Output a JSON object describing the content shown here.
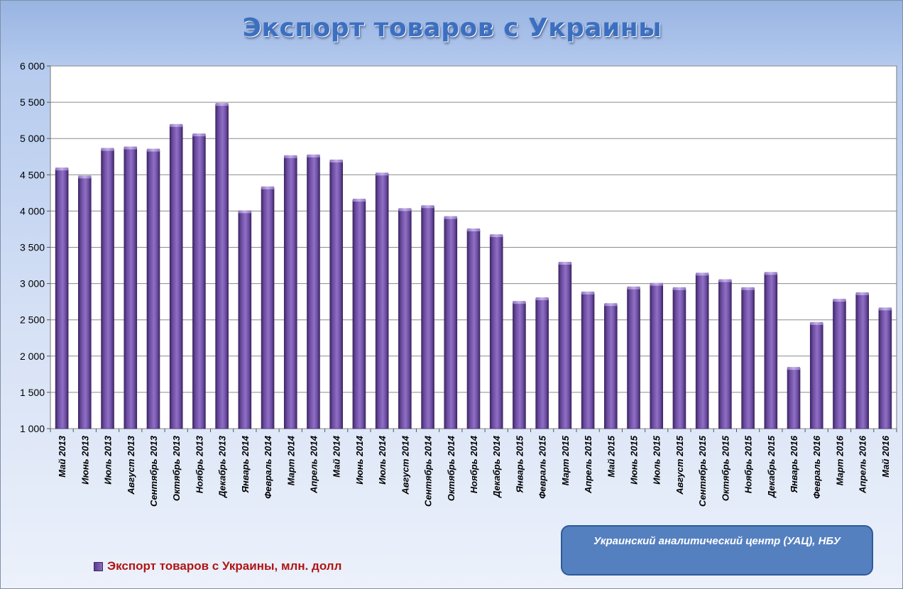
{
  "chart_data": {
    "type": "bar",
    "title": "Экспорт  товаров с Украины",
    "xlabel": "",
    "ylabel": "",
    "ylim": [
      1000,
      6000
    ],
    "yticks": [
      "1 000",
      "1 500",
      "2 000",
      "2 500",
      "3 000",
      "3 500",
      "4 000",
      "4 500",
      "5 000",
      "5 500",
      "6 000"
    ],
    "grid": true,
    "legend_position": "bottom-left",
    "categories": [
      "Май 2013",
      "Июнь 2013",
      "Июль 2013",
      "Август 2013",
      "Сентябрь 2013",
      "Октябрь 2013",
      "Ноябрь 2013",
      "Декабрь 2013",
      "Январь 2014",
      "Февраль 2014",
      "Март 2014",
      "Апрель 2014",
      "Май 2014",
      "Июнь 2014",
      "Июль 2014",
      "Август 2014",
      "Сентябрь 2014",
      "Октябрь 2014",
      "Ноябрь 2014",
      "Декабрь 2014",
      "Январь 2015",
      "Февраль 2015",
      "Март 2015",
      "Апрель 2015",
      "Май 2015",
      "Июнь 2015",
      "Июль 2015",
      "Август 2015",
      "Сентябрь 2015",
      "Октябрь 2015",
      "Ноябрь 2015",
      "Декабрь 2015",
      "Январь 2016",
      "Февраль 2016",
      "Март 2016",
      "Апрель 2016",
      "Май 2016"
    ],
    "series": [
      {
        "name": "Экспорт  товаров с Украины, млн. долл",
        "color": "#7a5aae",
        "values": [
          4580,
          4470,
          4850,
          4870,
          4840,
          5180,
          5050,
          5470,
          3990,
          4320,
          4750,
          4760,
          4690,
          4150,
          4510,
          4020,
          4060,
          3910,
          3740,
          3660,
          2740,
          2790,
          3280,
          2870,
          2710,
          2940,
          2990,
          2930,
          3130,
          3040,
          2930,
          3140,
          1830,
          2450,
          2770,
          2860,
          2650
        ]
      }
    ]
  },
  "legend": {
    "label": "Экспорт  товаров с Украины, млн. долл"
  },
  "source": {
    "text": "Украинский аналитический центр (УАЦ), НБУ"
  },
  "colors": {
    "bar": "#7a5aae",
    "plot_bg": "#ffffff",
    "grid": "#8a8a8a",
    "title": "#3c6fc0",
    "legend_text": "#b01515",
    "source_box": "#5580c0"
  }
}
